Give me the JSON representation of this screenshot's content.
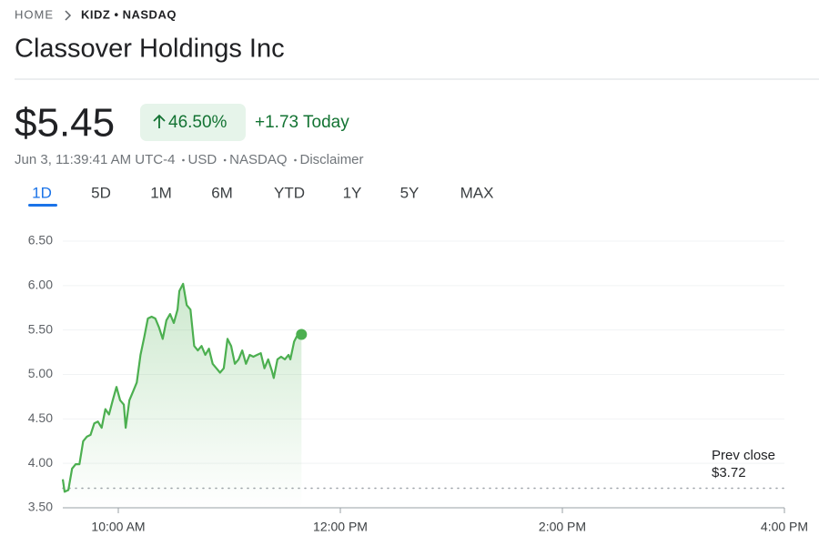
{
  "header": {
    "breadcrumb_home": "HOME",
    "breadcrumb_ticker": "KIDZ • NASDAQ",
    "title": "Classover Holdings Inc"
  },
  "quote": {
    "price": "$5.45",
    "change_percent": "46.50%",
    "change_today": "+1.73 Today",
    "info": [
      "Jun 3, 11:39:41 AM UTC-4",
      "USD",
      "NASDAQ",
      "Disclaimer"
    ]
  },
  "tabs": {
    "items": [
      "1D",
      "5D",
      "1M",
      "6M",
      "YTD",
      "1Y",
      "5Y",
      "MAX"
    ],
    "active": "1D"
  },
  "chart_data": {
    "type": "line",
    "x": [
      570,
      571,
      573,
      575,
      577,
      579,
      581,
      583,
      585,
      587,
      589,
      591,
      593,
      595,
      597,
      599,
      601,
      603,
      604,
      606,
      608,
      610,
      612,
      614,
      616,
      618,
      620,
      622,
      624,
      626,
      628,
      630,
      632,
      633,
      635,
      637,
      639,
      641,
      643,
      645,
      647,
      649,
      651,
      653,
      655,
      657,
      659,
      661,
      663,
      665,
      667,
      669,
      671,
      673,
      675,
      677,
      679,
      681,
      683,
      684,
      686,
      688,
      690,
      692,
      693,
      695,
      697,
      699
    ],
    "series": [
      {
        "name": "KIDZ",
        "color": "#4caf50",
        "values": [
          3.82,
          3.68,
          3.7,
          3.94,
          3.99,
          3.99,
          4.25,
          4.3,
          4.32,
          4.45,
          4.47,
          4.4,
          4.61,
          4.55,
          4.71,
          4.86,
          4.71,
          4.66,
          4.4,
          4.71,
          4.81,
          4.91,
          5.22,
          5.42,
          5.63,
          5.65,
          5.63,
          5.53,
          5.4,
          5.61,
          5.68,
          5.58,
          5.73,
          5.94,
          6.02,
          5.78,
          5.73,
          5.32,
          5.27,
          5.32,
          5.22,
          5.29,
          5.12,
          5.07,
          5.02,
          5.07,
          5.4,
          5.32,
          5.12,
          5.17,
          5.27,
          5.12,
          5.22,
          5.2,
          5.22,
          5.24,
          5.07,
          5.17,
          5.04,
          4.96,
          5.17,
          5.2,
          5.17,
          5.22,
          5.17,
          5.37,
          5.45,
          5.45
        ]
      }
    ],
    "xlim": [
      570,
      960
    ],
    "xticks": [
      {
        "value": 600,
        "label": "10:00 AM"
      },
      {
        "value": 720,
        "label": "12:00 PM"
      },
      {
        "value": 840,
        "label": "2:00 PM"
      },
      {
        "value": 960,
        "label": "4:00 PM"
      }
    ],
    "ylim": [
      3.5,
      6.5
    ],
    "yticks": [
      {
        "value": 3.5,
        "label": "3.50"
      },
      {
        "value": 4,
        "label": "4.00"
      },
      {
        "value": 4.5,
        "label": "4.50"
      },
      {
        "value": 5,
        "label": "5.00"
      },
      {
        "value": 5.5,
        "label": "5.50"
      },
      {
        "value": 6,
        "label": "6.00"
      },
      {
        "value": 6.5,
        "label": "6.50"
      }
    ],
    "grid": true,
    "prev_close": {
      "label": "Prev close",
      "value": 3.72,
      "value_label": "$3.72"
    }
  }
}
